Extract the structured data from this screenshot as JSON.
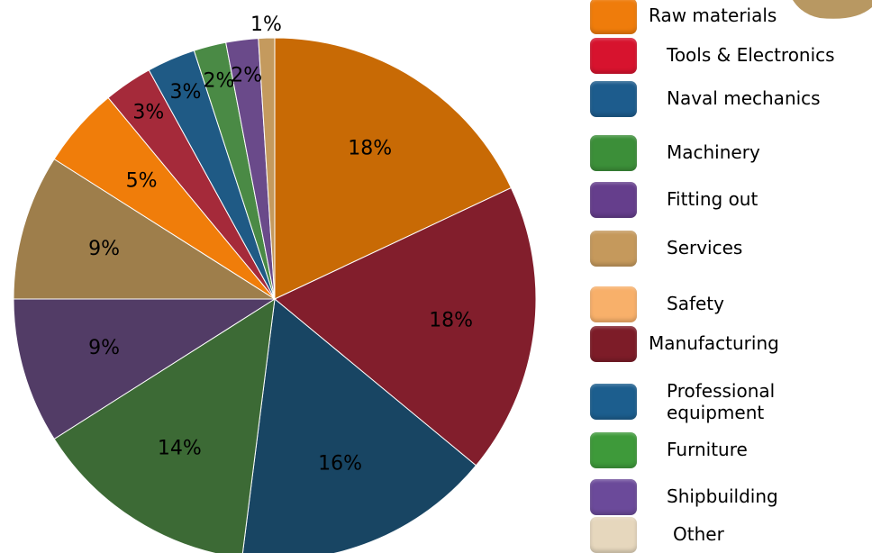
{
  "chart_data": {
    "type": "pie",
    "title": "",
    "start_angle_deg": 0,
    "direction": "clockwise",
    "slices": [
      {
        "label": "Raw materials",
        "value": 18,
        "value_label": "18%",
        "color": "#C86A05"
      },
      {
        "label": "Tools & Electronics",
        "value": 18,
        "value_label": "18%",
        "color": "#821E2C"
      },
      {
        "label": "Naval mechanics",
        "value": 16,
        "value_label": "16%",
        "color": "#184563"
      },
      {
        "label": "Machinery",
        "value": 14,
        "value_label": "14%",
        "color": "#3C6A35"
      },
      {
        "label": "Fitting out",
        "value": 9,
        "value_label": "9%",
        "color": "#523C66"
      },
      {
        "label": "Services",
        "value": 9,
        "value_label": "9%",
        "color": "#9E7E4B"
      },
      {
        "label": "Safety",
        "value": 5,
        "value_label": "5%",
        "color": "#F07D0A"
      },
      {
        "label": "Manufacturing",
        "value": 3,
        "value_label": "3%",
        "color": "#A52A3A"
      },
      {
        "label": "Professional equipment",
        "value": 3,
        "value_label": "3%",
        "color": "#1F5A85"
      },
      {
        "label": "Furniture",
        "value": 2,
        "value_label": "2%",
        "color": "#4A8A45"
      },
      {
        "label": "Shipbuilding",
        "value": 2,
        "value_label": "2%",
        "color": "#6A4A8A"
      },
      {
        "label": "Other",
        "value": 1,
        "value_label": "1%",
        "color": "#C49A5E"
      }
    ],
    "legend": {
      "placement": "right",
      "items": [
        {
          "label_lines": [
            "Raw materials"
          ],
          "color": "#EF7C0B"
        },
        {
          "label_lines": [
            "Tools & Electronics"
          ],
          "color": "#D7132E"
        },
        {
          "label_lines": [
            "Naval mechanics"
          ],
          "color": "#1D5C8D"
        },
        {
          "label_lines": [
            "Machinery"
          ],
          "color": "#3C8F39"
        },
        {
          "label_lines": [
            "Fitting out"
          ],
          "color": "#653E8C"
        },
        {
          "label_lines": [
            "Services"
          ],
          "color": "#C5995C"
        },
        {
          "label_lines": [
            "Safety"
          ],
          "color": "#F8B06A"
        },
        {
          "label_lines": [
            "Manufacturing"
          ],
          "color": "#7D1C28"
        },
        {
          "label_lines": [
            "Professional",
            "equipment"
          ],
          "color": "#1C5E8E"
        },
        {
          "label_lines": [
            "Furniture"
          ],
          "color": "#3E9A3A"
        },
        {
          "label_lines": [
            "Shipbuilding"
          ],
          "color": "#6B4A9A"
        },
        {
          "label_lines": [
            "Other"
          ],
          "color": "#E6D7BD"
        }
      ]
    }
  },
  "decor": {
    "corner_blob_color": "#B89862"
  }
}
